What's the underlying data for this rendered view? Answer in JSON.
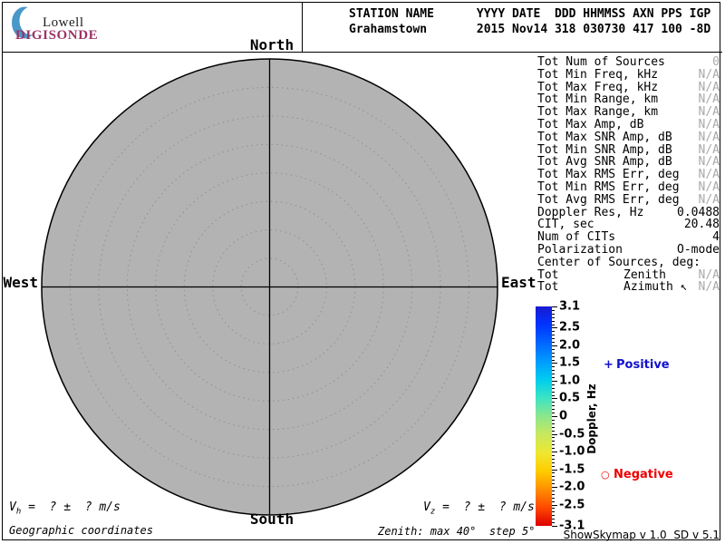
{
  "logo": {
    "top": "Lowell",
    "bottom": "DIGISONDE",
    "crescent_color": "#4898c8",
    "digisonde_color": "#9c3366"
  },
  "station": {
    "header_line": "STATION NAME      YYYY DATE  DDD HHMMSS AXN PPS IGP",
    "value_line": "Grahamstown       2015 Nov14 318 030730 417 100 -8D"
  },
  "stats": {
    "rows": [
      {
        "label": "Tot Num of Sources",
        "value": "0",
        "muted": true
      },
      {
        "label": "Tot Min Freq, kHz",
        "value": "N/A",
        "muted": true
      },
      {
        "label": "Tot Max Freq, kHz",
        "value": "N/A",
        "muted": true
      },
      {
        "label": "Tot Min Range, km",
        "value": "N/A",
        "muted": true
      },
      {
        "label": "Tot Max Range, km",
        "value": "N/A",
        "muted": true
      },
      {
        "label": "Tot Max Amp, dB",
        "value": "N/A",
        "muted": true
      },
      {
        "label": "Tot Max SNR Amp, dB",
        "value": "N/A",
        "muted": true
      },
      {
        "label": "Tot Min SNR Amp, dB",
        "value": "N/A",
        "muted": true
      },
      {
        "label": "Tot Avg SNR Amp, dB",
        "value": "N/A",
        "muted": true
      },
      {
        "label": "Tot Max RMS Err, deg",
        "value": "N/A",
        "muted": true
      },
      {
        "label": "Tot Min RMS Err, deg",
        "value": "N/A",
        "muted": true
      },
      {
        "label": "Tot Avg RMS Err, deg",
        "value": "N/A",
        "muted": true
      },
      {
        "label": "Doppler Res, Hz",
        "value": "0.0488",
        "muted": false
      },
      {
        "label": "CIT, sec",
        "value": "20.48",
        "muted": false
      },
      {
        "label": "Num of CITs",
        "value": "4",
        "muted": false
      },
      {
        "label": "Polarization",
        "value": "O-mode",
        "muted": false
      },
      {
        "label": "Center of Sources, deg:",
        "value": "",
        "muted": false
      },
      {
        "label": "Tot",
        "sublabel": "Zenith",
        "value": "N/A",
        "muted": true
      },
      {
        "label": "Tot",
        "sublabel": "Azimuth ↖",
        "value": "N/A",
        "muted": true
      }
    ]
  },
  "chart_data": {
    "type": "polar-skymap",
    "title": "Skymap of Doppler sources",
    "compass_labels": {
      "north": "North",
      "south": "South",
      "east": "East",
      "west": "West"
    },
    "zenith_max_deg": 40,
    "zenith_step_deg": 5,
    "coordinate_system": "Geographic coordinates",
    "num_sources": 0,
    "sources": [],
    "plot_fill": "#b3b3b3",
    "grid_color": "#8f8f8f",
    "colorbar": {
      "label": "Doppler, Hz",
      "min": -3.1,
      "max": 3.1,
      "gradient": [
        "#1a1ad0",
        "#0034ff",
        "#0066ff",
        "#009cff",
        "#00ccee",
        "#3ce4c4",
        "#8ce68c",
        "#c8e85e",
        "#eee830",
        "#ffcc00",
        "#ff9000",
        "#ff4800",
        "#dd0000"
      ],
      "ticks": [
        {
          "v": 3.1,
          "t": "3.1"
        },
        {
          "v": 2.5,
          "t": "2.5"
        },
        {
          "v": 2.0,
          "t": "2.0"
        },
        {
          "v": 1.5,
          "t": "1.5"
        },
        {
          "v": 1.0,
          "t": "1.0"
        },
        {
          "v": 0.5,
          "t": "0.5"
        },
        {
          "v": 0,
          "t": "0"
        },
        {
          "v": -0.5,
          "t": "-0.5"
        },
        {
          "v": -1.0,
          "t": "-1.0"
        },
        {
          "v": -1.5,
          "t": "-1.5"
        },
        {
          "v": -2.0,
          "t": "-2.0"
        },
        {
          "v": -2.5,
          "t": "-2.5"
        },
        {
          "v": -3.1,
          "t": "-3.1"
        }
      ],
      "minor_tick_step": 0.1
    },
    "legend": {
      "positive": {
        "symbol": "+",
        "label": "Positive",
        "color": "#1111cc"
      },
      "negative": {
        "symbol": "○",
        "label": "Negative",
        "color": "#ee0000"
      }
    }
  },
  "footer": {
    "vh": {
      "base": "V",
      "sub": "h",
      "rest": " =  ? ±  ? m/s"
    },
    "vz": {
      "base": "V",
      "sub": "z",
      "rest": " =  ? ±  ? m/s"
    },
    "coords": "Geographic coordinates",
    "zenith": "Zenith: max 40°  step 5°",
    "version": "ShowSkymap v 1.0  SD v 5.1"
  }
}
